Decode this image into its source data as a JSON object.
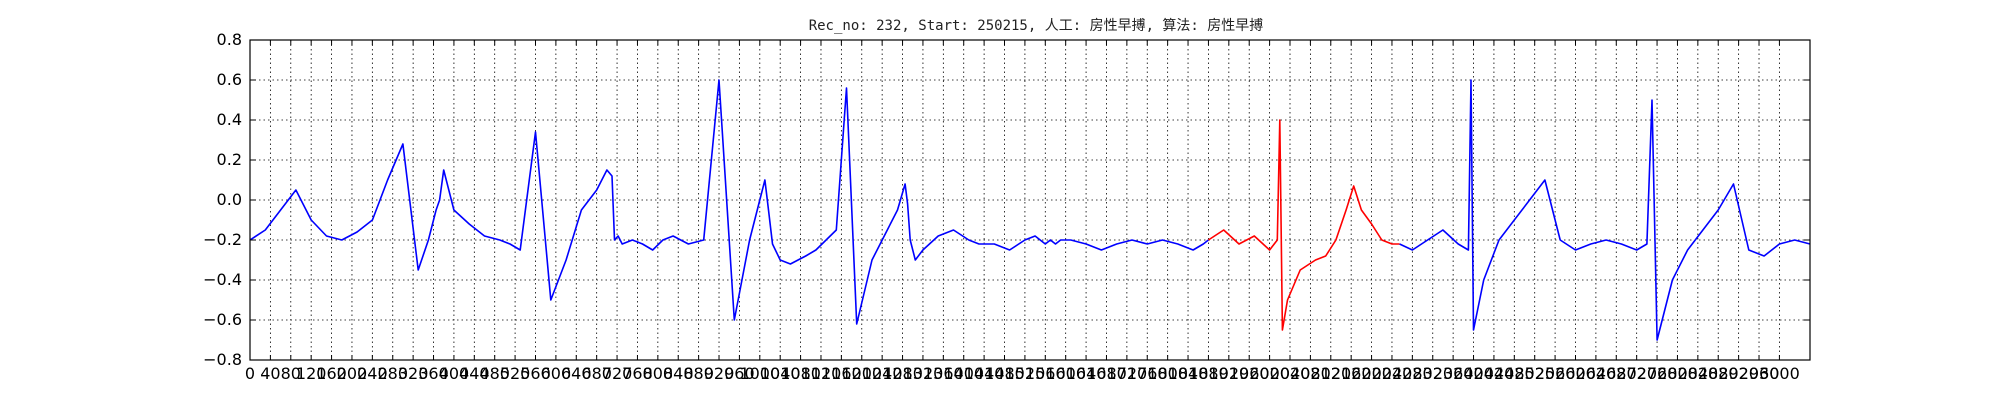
{
  "chart_data": {
    "type": "line",
    "title": "Rec_no: 232, Start: 250215, 人工: 房性早搏, 算法: 房性早搏",
    "xlabel": "",
    "ylabel": "",
    "xlim": [
      0,
      3060
    ],
    "ylim": [
      -0.8,
      0.8
    ],
    "grid": true,
    "x_tick_values": [
      0,
      40,
      80,
      120,
      160,
      200,
      240,
      280,
      320,
      360,
      400,
      440,
      480,
      520,
      560,
      600,
      640,
      680,
      720,
      760,
      800,
      840,
      880,
      920,
      960,
      1000,
      1040,
      1080,
      1120,
      1160,
      1200,
      1240,
      1280,
      1320,
      1360,
      1400,
      1440,
      1480,
      1520,
      1560,
      1600,
      1640,
      1680,
      1720,
      1760,
      1800,
      1840,
      1880,
      1920,
      1960,
      2000,
      2040,
      2080,
      2120,
      2160,
      2200,
      2240,
      2280,
      2320,
      2360,
      2400,
      2440,
      2480,
      2520,
      2560,
      2600,
      2640,
      2680,
      2720,
      2760,
      2800,
      2840,
      2880,
      2920,
      2960,
      3000
    ],
    "x_tick_labels": [
      "0",
      "40",
      "80",
      "120",
      "160",
      "200",
      "240",
      "280",
      "320",
      "360",
      "400",
      "440",
      "480",
      "520",
      "560",
      "600",
      "640",
      "680",
      "720",
      "760",
      "800",
      "840",
      "880",
      "920",
      "960",
      "1000",
      "1040",
      "1080",
      "1120",
      "1160",
      "1200",
      "1240",
      "1280",
      "1320",
      "1360",
      "1400",
      "1440",
      "1480",
      "1520",
      "1560",
      "1600",
      "1640",
      "1680",
      "1720",
      "1760",
      "1800",
      "1840",
      "1880",
      "1920",
      "1960",
      "2000",
      "2040",
      "2080",
      "2120",
      "2160",
      "2200",
      "2240",
      "2280",
      "2320",
      "2360",
      "2400",
      "2440",
      "2480",
      "2520",
      "2560",
      "2600",
      "2640",
      "2680",
      "2720",
      "2760",
      "2800",
      "2840",
      "2880",
      "2920",
      "2960",
      "3000"
    ],
    "y_tick_labels": [
      "0.8",
      "0.6",
      "0.4",
      "0.2",
      "0.0",
      "−0.2",
      "−0.4",
      "−0.6",
      "−0.8"
    ],
    "y_tick_values": [
      0.8,
      0.6,
      0.4,
      0.2,
      0.0,
      -0.2,
      -0.4,
      -0.6,
      -0.8
    ],
    "series": [
      {
        "color": "#0000ff",
        "x": [
          0,
          30,
          60,
          90,
          120,
          150,
          180,
          210,
          240,
          270,
          300,
          330,
          350,
          365,
          372,
          380,
          400,
          430,
          460,
          490,
          510,
          530,
          560,
          590,
          620,
          650,
          680,
          700,
          710,
          715,
          722,
          730,
          750,
          770,
          790,
          810,
          830,
          860,
          890,
          920,
          950,
          980,
          1000,
          1010,
          1017,
          1025,
          1040,
          1060,
          1090,
          1110,
          1130,
          1150,
          1170,
          1190,
          1220,
          1250,
          1270,
          1285,
          1290,
          1295,
          1305,
          1320,
          1350,
          1380,
          1410,
          1430,
          1460,
          1490,
          1520,
          1540,
          1560,
          1570,
          1580,
          1590,
          1610,
          1640,
          1670,
          1700,
          1730,
          1760,
          1790,
          1820,
          1850,
          1870,
          1880
        ],
        "y": [
          -0.2,
          -0.15,
          -0.05,
          0.05,
          -0.1,
          -0.18,
          -0.2,
          -0.16,
          -0.1,
          0.1,
          0.28,
          -0.35,
          -0.2,
          -0.05,
          0.0,
          0.15,
          -0.05,
          -0.12,
          -0.18,
          -0.2,
          -0.22,
          -0.25,
          0.34,
          -0.5,
          -0.3,
          -0.05,
          0.05,
          0.15,
          0.12,
          -0.2,
          -0.18,
          -0.22,
          -0.2,
          -0.22,
          -0.25,
          -0.2,
          -0.18,
          -0.22,
          -0.2,
          0.6,
          -0.6,
          -0.2,
          0.0,
          0.1,
          -0.05,
          -0.22,
          -0.3,
          -0.32,
          -0.28,
          -0.25,
          -0.2,
          -0.15,
          0.56,
          -0.62,
          -0.3,
          -0.15,
          -0.05,
          0.08,
          -0.02,
          -0.2,
          -0.3,
          -0.25,
          -0.18,
          -0.15,
          -0.2,
          -0.22,
          -0.22,
          -0.25,
          -0.2,
          -0.18,
          -0.22,
          -0.2,
          -0.22,
          -0.2,
          -0.2,
          -0.22,
          -0.25,
          -0.22,
          -0.2,
          -0.22,
          -0.2,
          -0.22,
          -0.25,
          -0.22,
          -0.2
        ]
      },
      {
        "color": "#ff0000",
        "x": [
          1880,
          1910,
          1940,
          1970,
          2000,
          2015,
          2020,
          2025,
          2035,
          2060,
          2090,
          2110,
          2130,
          2150,
          2165,
          2180,
          2200,
          2220,
          2240,
          2255
        ],
        "y": [
          -0.2,
          -0.15,
          -0.22,
          -0.18,
          -0.25,
          -0.2,
          0.4,
          -0.65,
          -0.5,
          -0.35,
          -0.3,
          -0.28,
          -0.2,
          -0.05,
          0.07,
          -0.05,
          -0.12,
          -0.2,
          -0.22,
          -0.22
        ]
      },
      {
        "color": "#0000ff",
        "x": [
          2255,
          2280,
          2310,
          2340,
          2370,
          2390,
          2395,
          2400,
          2420,
          2450,
          2480,
          2510,
          2540,
          2570,
          2600,
          2630,
          2660,
          2690,
          2720,
          2740,
          2750,
          2760,
          2790,
          2820,
          2850,
          2880,
          2910,
          2940,
          2970,
          3000,
          3030,
          3060
        ],
        "y": [
          -0.22,
          -0.25,
          -0.2,
          -0.15,
          -0.22,
          -0.25,
          0.6,
          -0.65,
          -0.4,
          -0.2,
          -0.1,
          0.0,
          0.1,
          -0.2,
          -0.25,
          -0.22,
          -0.2,
          -0.22,
          -0.25,
          -0.22,
          0.5,
          -0.7,
          -0.4,
          -0.25,
          -0.15,
          -0.05,
          0.08,
          -0.25,
          -0.28,
          -0.22,
          -0.2,
          -0.22
        ]
      }
    ]
  }
}
